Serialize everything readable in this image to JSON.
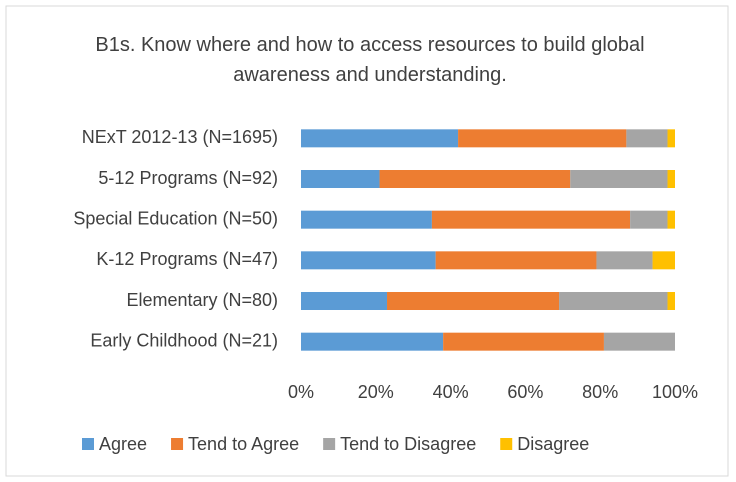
{
  "chart_data": {
    "type": "stacked_barh",
    "title": "B1s. Know where and how to access resources to build global awareness and understanding.",
    "categories": [
      "NExT 2012-13  (N=1695)",
      "5-12 Programs  (N=92)",
      "Special Education  (N=50)",
      "K-12 Programs   (N=47)",
      "Elementary  (N=80)",
      "Early Childhood  (N=21)"
    ],
    "series": [
      {
        "name": "Agree",
        "color": "#5b9bd5",
        "values": [
          42,
          21,
          35,
          36,
          23,
          38
        ]
      },
      {
        "name": "Tend to Agree",
        "color": "#ed7d31",
        "values": [
          45,
          51,
          53,
          43,
          46,
          43
        ]
      },
      {
        "name": "Tend to Disagree",
        "color": "#a5a5a5",
        "values": [
          11,
          26,
          10,
          15,
          29,
          19
        ]
      },
      {
        "name": "Disagree",
        "color": "#ffc000",
        "values": [
          2,
          2,
          2,
          6,
          2,
          0
        ]
      }
    ],
    "xlim": [
      0,
      100
    ],
    "xticks": [
      {
        "value": 0,
        "label": "0%"
      },
      {
        "value": 20,
        "label": "20%"
      },
      {
        "value": 40,
        "label": "40%"
      },
      {
        "value": 60,
        "label": "60%"
      },
      {
        "value": 80,
        "label": "80%"
      },
      {
        "value": 100,
        "label": "100%"
      }
    ],
    "legend": "bottom"
  }
}
